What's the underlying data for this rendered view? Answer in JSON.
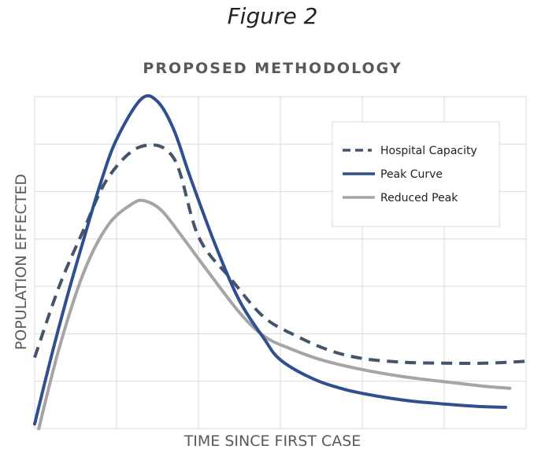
{
  "figure_label": "Figure 2",
  "chart_data": {
    "type": "line",
    "title": "PROPOSED METHODOLOGY",
    "xlabel": "TIME SINCE FIRST CASE",
    "ylabel": "POPULATION EFFECTED",
    "xlim": [
      0,
      6
    ],
    "ylim": [
      0,
      7
    ],
    "grid": true,
    "legend_position": "top-right",
    "series": [
      {
        "name": "Hospital Capacity",
        "style": "dashed",
        "color": "#44546A",
        "x": [
          0,
          0.3,
          0.6,
          0.9,
          1.3,
          1.7,
          2.0,
          2.4,
          2.8,
          3.2,
          3.6,
          4.0,
          4.5,
          5.0,
          5.5,
          6.0
        ],
        "y": [
          1.5,
          3.0,
          4.2,
          5.3,
          5.95,
          5.7,
          4.05,
          3.15,
          2.35,
          1.95,
          1.65,
          1.48,
          1.4,
          1.38,
          1.38,
          1.42
        ]
      },
      {
        "name": "Peak Curve",
        "style": "solid",
        "color": "#2F4F8F",
        "x": [
          0,
          0.2,
          0.4,
          0.6,
          0.8,
          1.0,
          1.3,
          1.5,
          1.7,
          1.9,
          2.2,
          2.5,
          2.8,
          3.0,
          3.4,
          3.8,
          4.2,
          4.6,
          5.0,
          5.4,
          5.75
        ],
        "y": [
          0.1,
          1.5,
          2.8,
          4.0,
          5.15,
          6.1,
          6.95,
          6.9,
          6.3,
          5.3,
          3.9,
          2.7,
          1.9,
          1.45,
          1.05,
          0.82,
          0.68,
          0.58,
          0.52,
          0.47,
          0.45
        ]
      },
      {
        "name": "Reduced Peak",
        "style": "solid",
        "color": "#A5A5A5",
        "x": [
          0.05,
          0.3,
          0.6,
          0.9,
          1.2,
          1.35,
          1.55,
          1.8,
          2.1,
          2.5,
          2.8,
          3.1,
          3.5,
          3.9,
          4.3,
          4.7,
          5.1,
          5.45,
          5.8
        ],
        "y": [
          0.0,
          1.7,
          3.3,
          4.3,
          4.75,
          4.8,
          4.6,
          4.05,
          3.35,
          2.45,
          1.95,
          1.7,
          1.45,
          1.28,
          1.15,
          1.05,
          0.97,
          0.9,
          0.85
        ]
      }
    ]
  }
}
